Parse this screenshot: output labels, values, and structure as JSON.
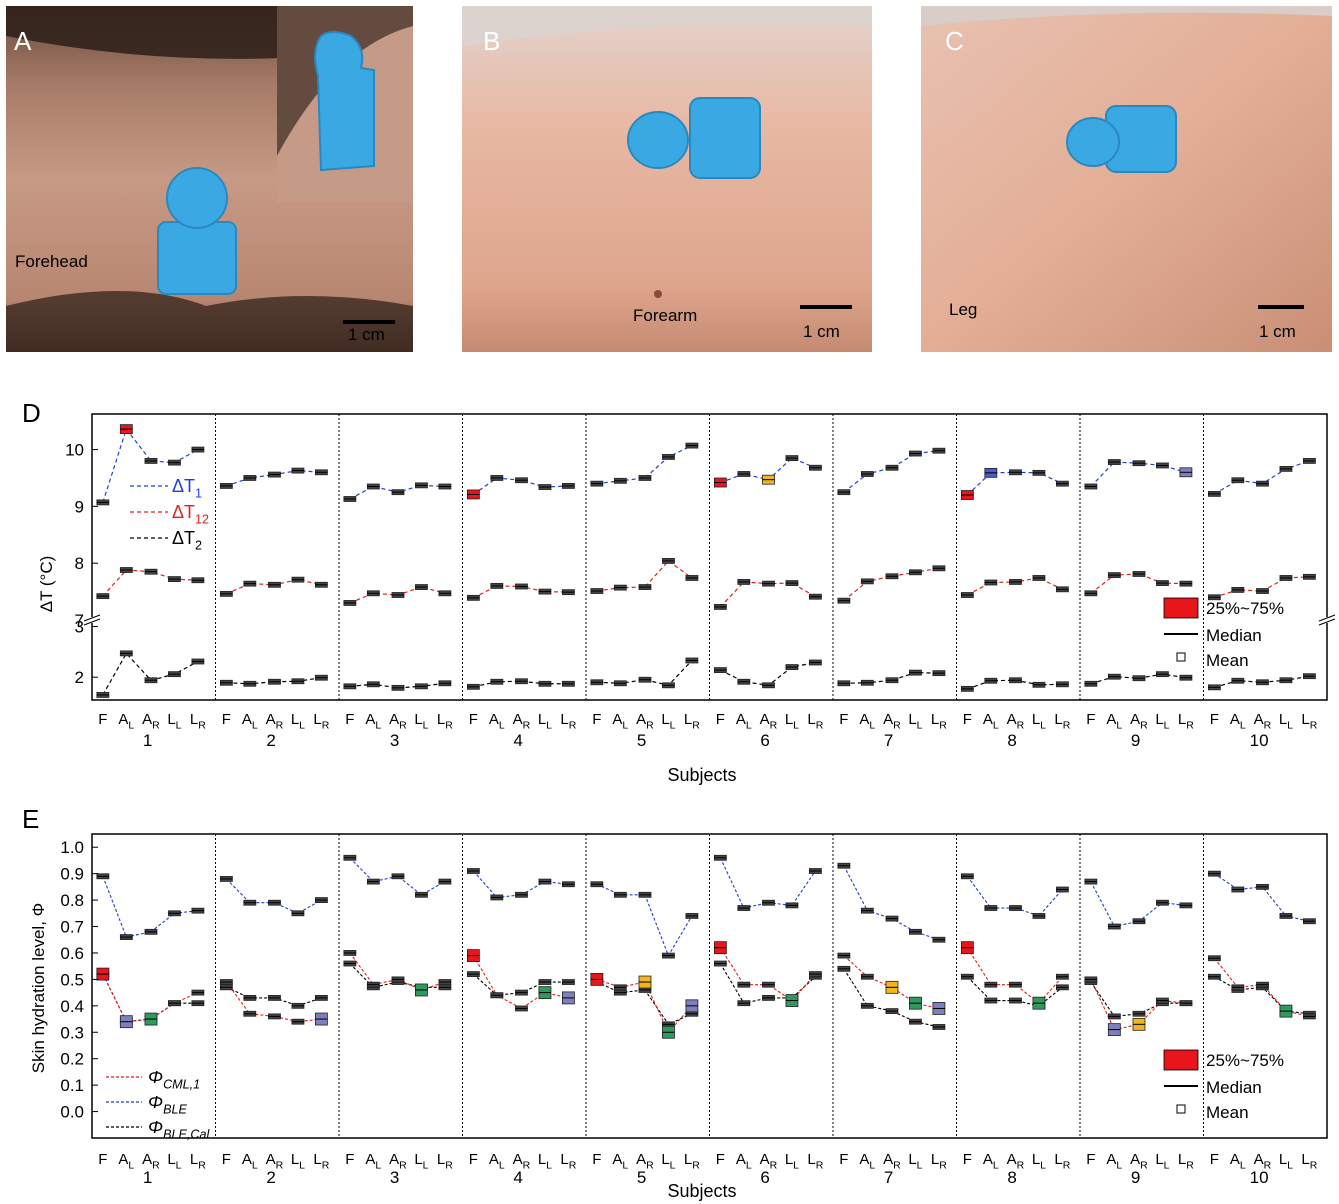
{
  "photos": [
    {
      "label": "A",
      "site": "Forehead",
      "scale": "1 cm"
    },
    {
      "label": "B",
      "site": "Forearm",
      "scale": "1 cm"
    },
    {
      "label": "C",
      "site": "Leg",
      "scale": "1 cm"
    }
  ],
  "panel_d": {
    "label": "D"
  },
  "panel_e": {
    "label": "E"
  },
  "colors": {
    "dt1": "#1f3fd6",
    "dt12": "#e0201c",
    "dt2": "#000000",
    "box_red": "#e8151b",
    "box_blue": "#4a5ec9",
    "box_yellow": "#f2b51b",
    "box_green": "#2f9a5d",
    "box_purple": "#7d7fbf",
    "device": "#3aa9e3"
  },
  "chart_data": [
    {
      "type": "box",
      "ylabel": "ΔT (°C)",
      "xlabel": "Subjects",
      "positions": [
        "F",
        "AL",
        "AR",
        "LL",
        "LR"
      ],
      "position_labels": [
        {
          "main": "F",
          "sub": ""
        },
        {
          "main": "A",
          "sub": "L"
        },
        {
          "main": "A",
          "sub": "R"
        },
        {
          "main": "L",
          "sub": "L"
        },
        {
          "main": "L",
          "sub": "R"
        }
      ],
      "subjects": [
        "1",
        "2",
        "3",
        "4",
        "5",
        "6",
        "7",
        "8",
        "9",
        "10"
      ],
      "axis_break": true,
      "upper_yticks": [
        "7",
        "8",
        "9",
        "10"
      ],
      "lower_yticks": [
        "2",
        "3"
      ],
      "legend_series": [
        {
          "main": "ΔT",
          "sub": "1"
        },
        {
          "main": "ΔT",
          "sub": "12"
        },
        {
          "main": "ΔT",
          "sub": "2"
        }
      ],
      "legend_box": {
        "box": "25%~75%",
        "median": "Median",
        "mean": "Mean"
      },
      "series": {
        "dT1": [
          [
            9.07,
            10.36,
            9.8,
            9.77,
            10.0
          ],
          [
            9.36,
            9.5,
            9.56,
            9.63,
            9.6
          ],
          [
            9.13,
            9.35,
            9.25,
            9.37,
            9.35
          ],
          [
            9.21,
            9.5,
            9.46,
            9.34,
            9.36
          ],
          [
            9.4,
            9.45,
            9.5,
            9.87,
            10.07
          ],
          [
            9.42,
            9.57,
            9.47,
            9.85,
            9.68
          ],
          [
            9.25,
            9.57,
            9.68,
            9.93,
            9.98
          ],
          [
            9.2,
            9.59,
            9.6,
            9.59,
            9.4
          ],
          [
            9.35,
            9.78,
            9.76,
            9.72,
            9.6
          ],
          [
            9.22,
            9.46,
            9.4,
            9.66,
            9.8
          ]
        ],
        "dT12": [
          [
            7.42,
            7.88,
            7.85,
            7.72,
            7.7
          ],
          [
            7.46,
            7.64,
            7.62,
            7.71,
            7.62
          ],
          [
            7.3,
            7.47,
            7.44,
            7.58,
            7.47
          ],
          [
            7.39,
            7.6,
            7.59,
            7.5,
            7.49
          ],
          [
            7.51,
            7.57,
            7.58,
            8.04,
            7.74
          ],
          [
            7.23,
            7.67,
            7.64,
            7.65,
            7.41
          ],
          [
            7.34,
            7.68,
            7.77,
            7.84,
            7.91
          ],
          [
            7.44,
            7.66,
            7.67,
            7.74,
            7.54
          ],
          [
            7.47,
            7.79,
            7.81,
            7.65,
            7.64
          ],
          [
            7.4,
            7.53,
            7.51,
            7.74,
            7.76
          ]
        ],
        "dT2": [
          [
            1.65,
            2.47,
            1.94,
            2.06,
            2.31
          ],
          [
            1.89,
            1.87,
            1.91,
            1.92,
            1.99
          ],
          [
            1.82,
            1.86,
            1.79,
            1.82,
            1.88
          ],
          [
            1.81,
            1.91,
            1.92,
            1.87,
            1.87
          ],
          [
            1.9,
            1.88,
            1.95,
            1.84,
            2.33
          ],
          [
            2.14,
            1.91,
            1.84,
            2.2,
            2.29
          ],
          [
            1.88,
            1.89,
            1.94,
            2.09,
            2.08
          ],
          [
            1.77,
            1.93,
            1.94,
            1.85,
            1.86
          ],
          [
            1.87,
            2.01,
            1.98,
            2.06,
            1.99
          ],
          [
            1.8,
            1.93,
            1.9,
            1.94,
            2.02
          ]
        ]
      }
    },
    {
      "type": "box",
      "ylabel": "Skin hydration level, Φ",
      "xlabel": "Subjects",
      "positions": [
        "F",
        "AL",
        "AR",
        "LL",
        "LR"
      ],
      "subjects": [
        "1",
        "2",
        "3",
        "4",
        "5",
        "6",
        "7",
        "8",
        "9",
        "10"
      ],
      "ylim": [
        -0.1,
        1.05
      ],
      "yticks": [
        "0.0",
        "0.1",
        "0.2",
        "0.3",
        "0.4",
        "0.5",
        "0.6",
        "0.7",
        "0.8",
        "0.9",
        "1.0"
      ],
      "legend_series": [
        {
          "main": "Φ",
          "sub": "CML,1"
        },
        {
          "main": "Φ",
          "sub": "BLE"
        },
        {
          "main": "Φ",
          "sub": "BLE,Cal"
        }
      ],
      "legend_box": {
        "box": "25%~75%",
        "median": "Median",
        "mean": "Mean"
      },
      "series": {
        "cml": [
          [
            0.52,
            0.34,
            0.35,
            0.41,
            0.45
          ],
          [
            0.49,
            0.37,
            0.36,
            0.34,
            0.35
          ],
          [
            0.6,
            0.48,
            0.5,
            0.46,
            0.49
          ],
          [
            0.59,
            0.44,
            0.39,
            0.45,
            0.43
          ],
          [
            0.5,
            0.47,
            0.49,
            0.3,
            0.4
          ],
          [
            0.62,
            0.48,
            0.48,
            0.42,
            0.52
          ],
          [
            0.59,
            0.51,
            0.47,
            0.41,
            0.39
          ],
          [
            0.62,
            0.48,
            0.48,
            0.41,
            0.51
          ],
          [
            0.5,
            0.31,
            0.33,
            0.42,
            0.41
          ],
          [
            0.58,
            0.47,
            0.48,
            0.38,
            0.36
          ]
        ],
        "ble": [
          [
            0.89,
            0.66,
            0.68,
            0.75,
            0.76
          ],
          [
            0.88,
            0.79,
            0.79,
            0.75,
            0.8
          ],
          [
            0.96,
            0.87,
            0.89,
            0.82,
            0.87
          ],
          [
            0.91,
            0.81,
            0.82,
            0.87,
            0.86
          ],
          [
            0.86,
            0.82,
            0.82,
            0.59,
            0.74
          ],
          [
            0.96,
            0.77,
            0.79,
            0.78,
            0.91
          ],
          [
            0.93,
            0.76,
            0.73,
            0.68,
            0.65
          ],
          [
            0.89,
            0.77,
            0.77,
            0.74,
            0.84
          ],
          [
            0.87,
            0.7,
            0.72,
            0.79,
            0.78
          ],
          [
            0.9,
            0.84,
            0.85,
            0.74,
            0.72
          ]
        ],
        "blecal": [
          [
            0.52,
            0.34,
            0.35,
            0.41,
            0.41
          ],
          [
            0.47,
            0.43,
            0.43,
            0.4,
            0.43
          ],
          [
            0.56,
            0.47,
            0.49,
            0.47,
            0.47
          ],
          [
            0.52,
            0.44,
            0.45,
            0.49,
            0.49
          ],
          [
            0.49,
            0.45,
            0.46,
            0.33,
            0.37
          ],
          [
            0.56,
            0.41,
            0.43,
            0.43,
            0.51
          ],
          [
            0.54,
            0.4,
            0.38,
            0.34,
            0.32
          ],
          [
            0.51,
            0.42,
            0.42,
            0.4,
            0.47
          ],
          [
            0.49,
            0.36,
            0.37,
            0.41,
            0.41
          ],
          [
            0.51,
            0.46,
            0.47,
            0.38,
            0.37
          ]
        ]
      }
    }
  ]
}
